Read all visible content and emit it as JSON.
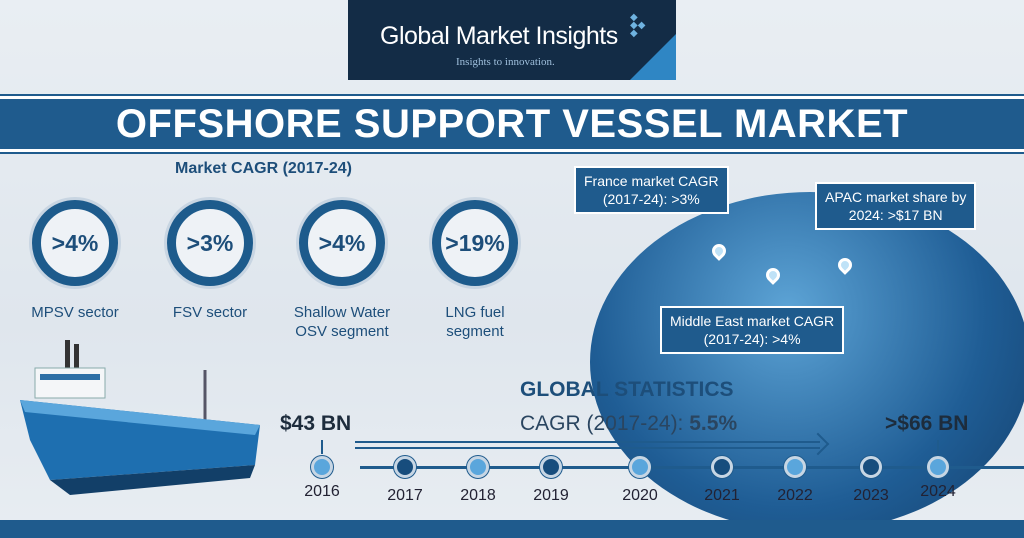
{
  "logo": {
    "name": "Global Market Insights",
    "tagline": "Insights to innovation."
  },
  "title": "OFFSHORE SUPPORT VESSEL MARKET",
  "market_cagr": {
    "heading": "Market CAGR (2017-24)",
    "items": [
      {
        "value": ">4%",
        "label1": "MPSV sector",
        "label2": ""
      },
      {
        "value": ">3%",
        "label1": "FSV sector",
        "label2": ""
      },
      {
        "value": ">4%",
        "label1": "Shallow Water",
        "label2": "OSV segment"
      },
      {
        "value": ">19%",
        "label1": "LNG fuel",
        "label2": "segment"
      }
    ]
  },
  "regions": {
    "france": {
      "line1": "France market CAGR",
      "line2": "(2017-24): >3%"
    },
    "apac": {
      "line1": "APAC market share by",
      "line2": "2024: >$17 BN"
    },
    "middle_east": {
      "line1": "Middle East market CAGR",
      "line2": "(2017-24): >4%"
    }
  },
  "global_stats": {
    "heading": "GLOBAL STATISTICS",
    "cagr_label": "CAGR (2017-24):",
    "cagr_value": "5.5%",
    "start_value": "$43 BN",
    "end_value": ">$66 BN",
    "years": [
      "2016",
      "2017",
      "2018",
      "2019",
      "2020",
      "2021",
      "2022",
      "2023",
      "2024"
    ]
  },
  "colors": {
    "primary": "#1f5b8d",
    "dark": "#132c46",
    "light_dot": "#5aa6dc",
    "dark_dot": "#174d7d"
  }
}
